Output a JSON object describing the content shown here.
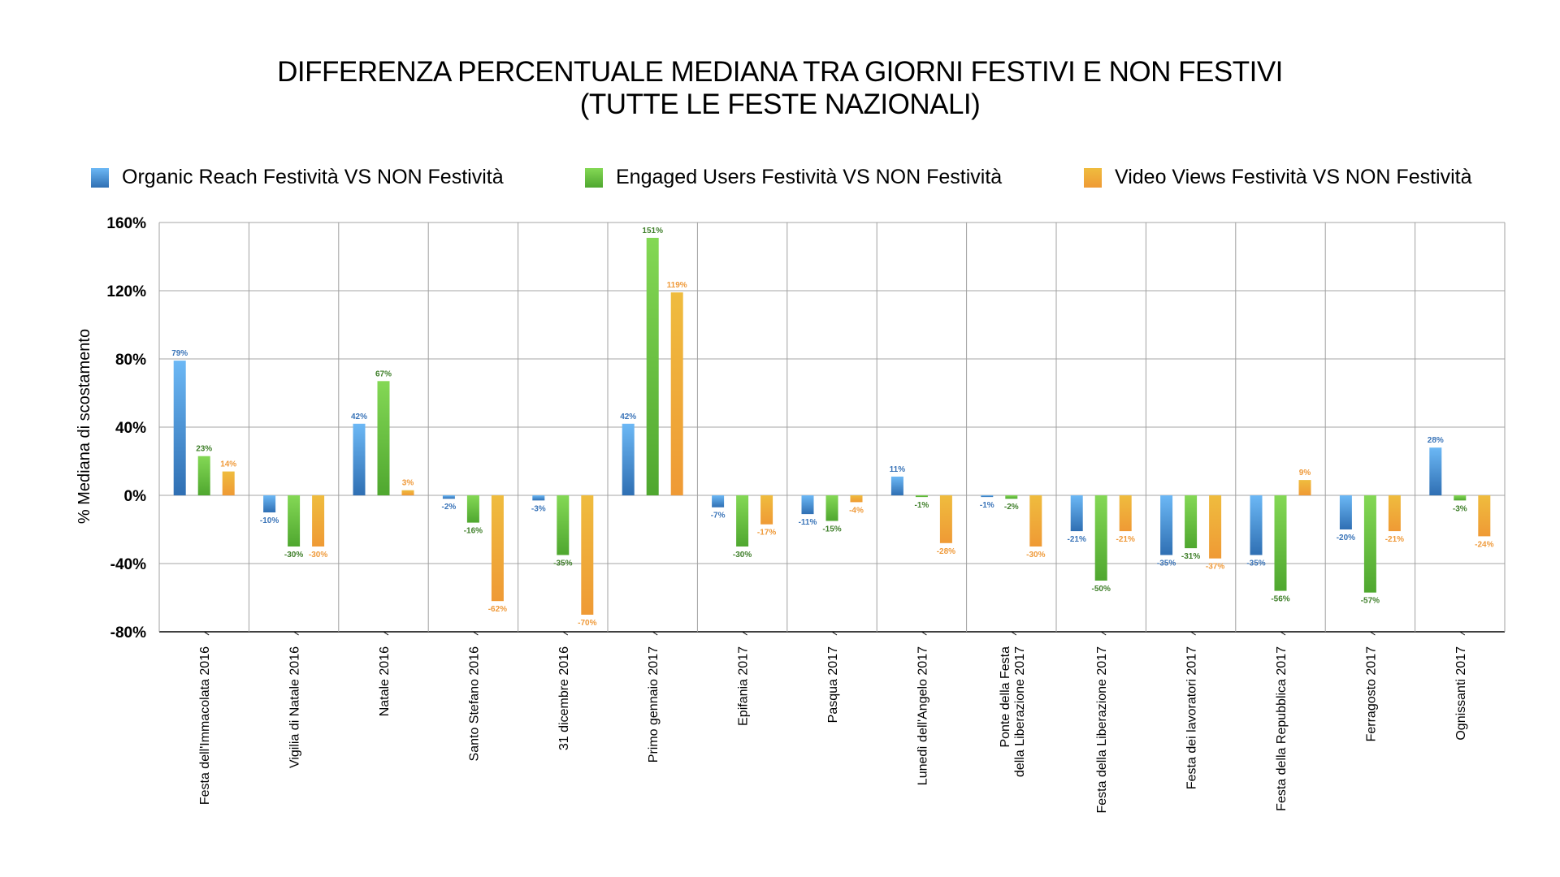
{
  "chart_data": {
    "type": "bar",
    "title": "DIFFERENZA PERCENTUALE MEDIANA TRA GIORNI FESTIVI E NON FESTIVI",
    "subtitle": "(TUTTE LE FESTE NAZIONALI)",
    "xlabel": "",
    "ylabel": "% Mediana di scostamento",
    "ylim": [
      -80,
      160
    ],
    "yticks": [
      -80,
      -40,
      0,
      40,
      80,
      120,
      160
    ],
    "ytick_labels": [
      "-80%",
      "-40%",
      "0%",
      "40%",
      "80%",
      "120%",
      "160%"
    ],
    "grid": true,
    "legend_position": "top",
    "categories": [
      "Festa dell'Immacolata 2016",
      "Vigilia di Natale 2016",
      "Natale 2016",
      "Santo Stefano 2016",
      "31 dicembre 2016",
      "Primo gennaio 2017",
      "Epifania 2017",
      "Pasqua 2017",
      "Lunedì dell'Angelo 2017",
      "Ponte della Festa\ndella Liberazione 2017",
      "Festa della Liberazione 2017",
      "Festa dei lavoratori 2017",
      "Festa della Repubblica 2017",
      "Ferragosto 2017",
      "Ognissanti 2017"
    ],
    "series": [
      {
        "name": "Organic Reach Festività VS NON Festività",
        "color_top": "#6cb8f5",
        "color_bottom": "#2f6fb3",
        "label_color": "#3a74b8",
        "values": [
          79,
          -10,
          42,
          -2,
          -3,
          42,
          -7,
          -11,
          11,
          -1,
          -21,
          -35,
          -35,
          -20,
          28
        ]
      },
      {
        "name": "Engaged Users Festività VS NON Festività",
        "color_top": "#84d855",
        "color_bottom": "#4fa72f",
        "label_color": "#3f7f2a",
        "values": [
          23,
          -30,
          67,
          -16,
          -35,
          151,
          -30,
          -15,
          -1,
          -2,
          -50,
          -31,
          -56,
          -57,
          -3
        ]
      },
      {
        "name": "Video Views Festività VS NON Festività",
        "color_top": "#efbc3e",
        "color_bottom": "#ef9a35",
        "label_color": "#ef9a3a",
        "values": [
          14,
          -30,
          3,
          -62,
          -70,
          119,
          -17,
          -4,
          -28,
          -30,
          -21,
          -37,
          9,
          -21,
          -24
        ]
      }
    ],
    "value_suffix": "%"
  }
}
